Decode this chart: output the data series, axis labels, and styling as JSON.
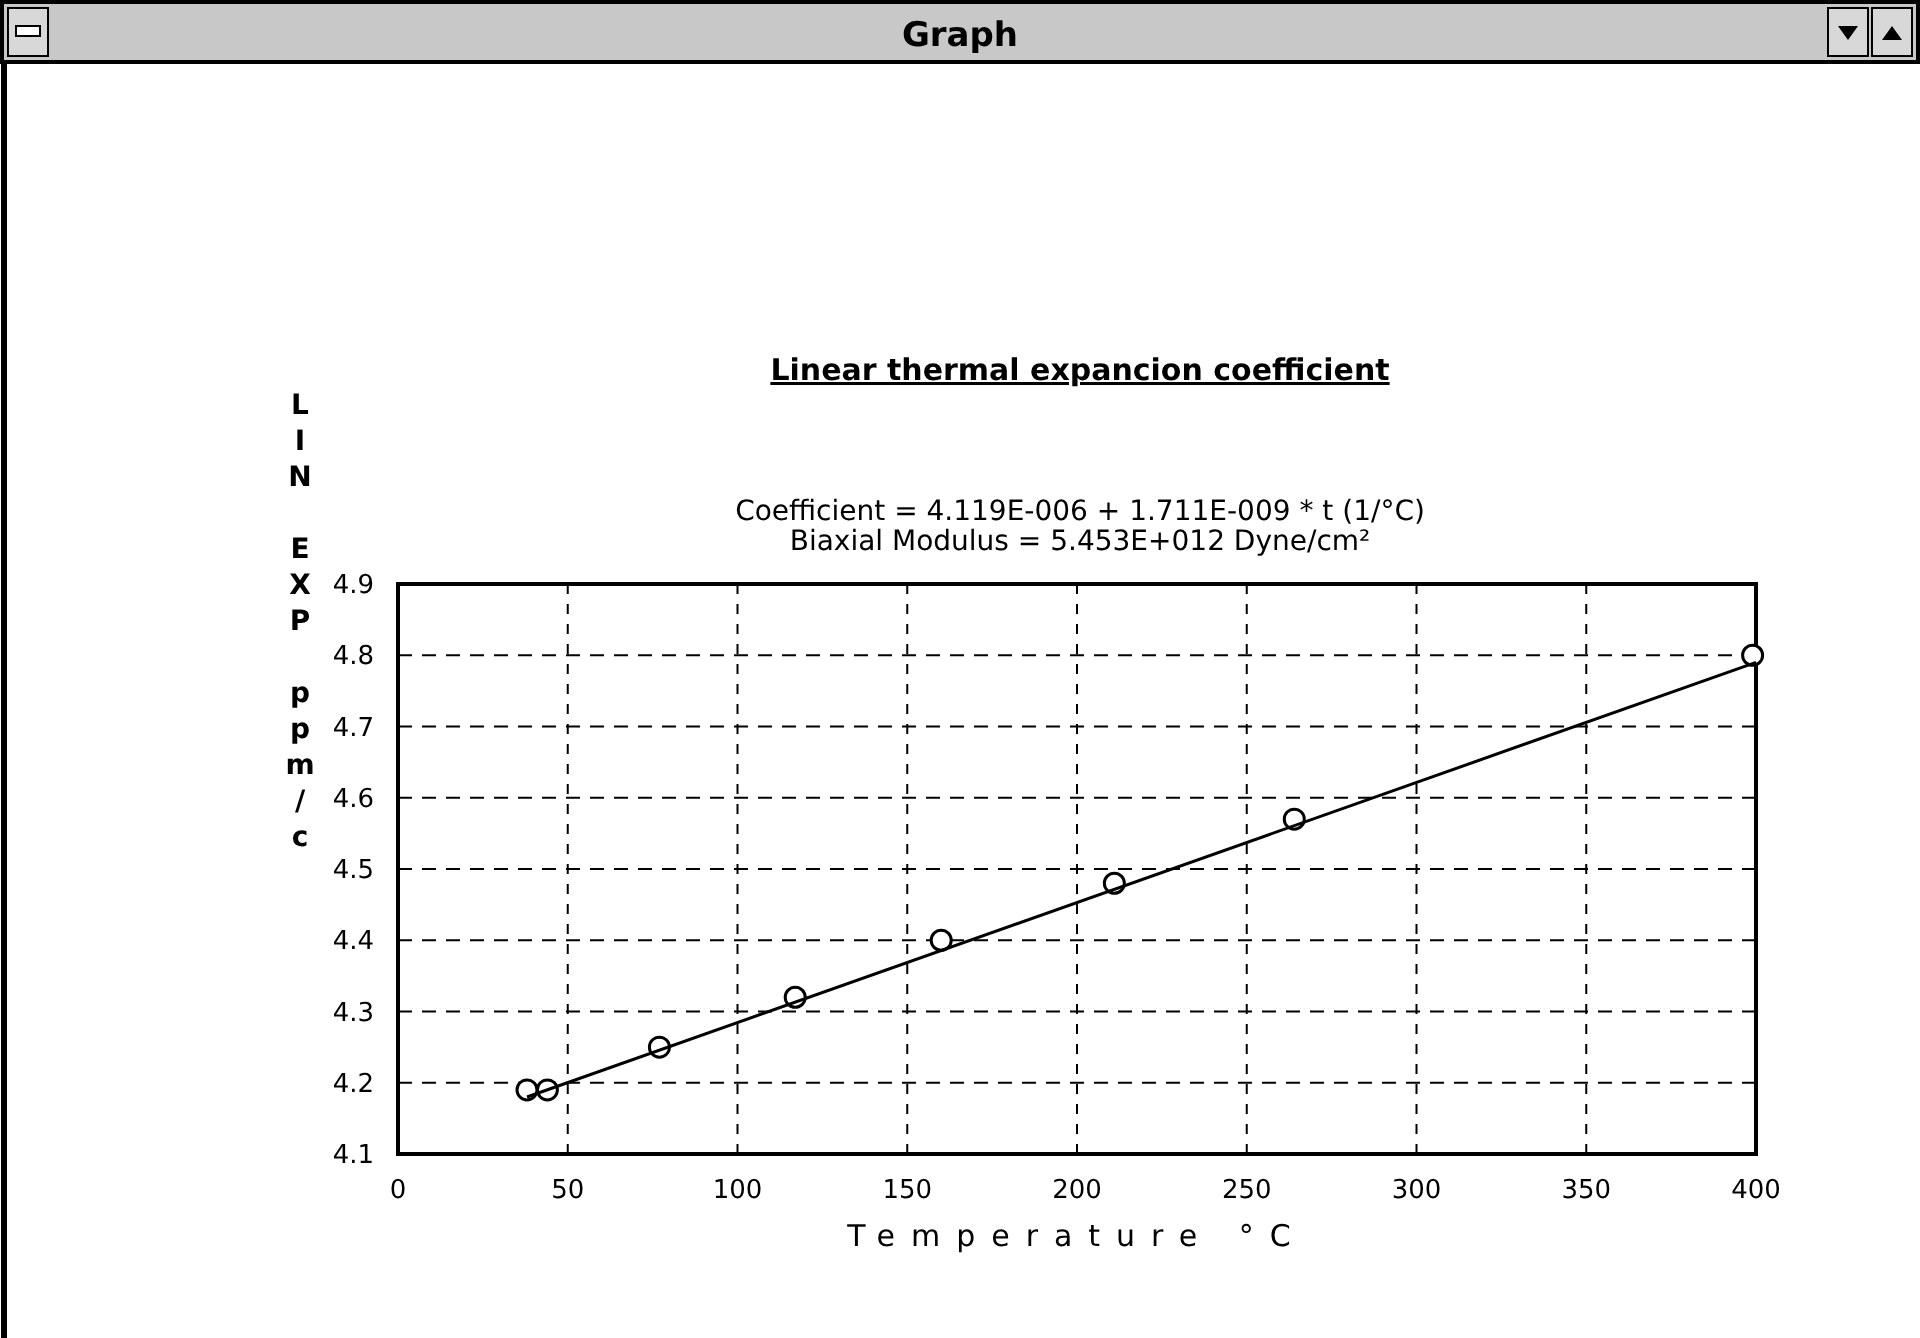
{
  "chart_data": {
    "type": "scatter",
    "title": "Linear thermal expancion coefficient",
    "subtitle": "Coefficient = 4.119E-006 + 1.711E-009 * t (1/°C)\nBiaxial Modulus = 5.453E+012 Dyne/cm²",
    "xlabel": "Temperature °C",
    "ylabel": "LIN EXP ppm/c",
    "annotations": [
      "Graph"
    ],
    "xlim": [
      0,
      400
    ],
    "xticks": [
      0,
      50,
      100,
      150,
      200,
      250,
      300,
      350,
      400
    ],
    "ylim": [
      4.1,
      4.9
    ],
    "yticks": [
      4.1,
      4.2,
      4.3,
      4.4,
      4.5,
      4.6,
      4.7,
      4.8,
      4.9
    ],
    "grid": true,
    "marker": "circle",
    "series": [
      {
        "color": "#000000",
        "x": [
          38,
          44,
          77,
          117,
          160,
          211,
          264,
          399
        ],
        "values": [
          4.19,
          4.19,
          4.25,
          4.32,
          4.4,
          4.48,
          4.57,
          4.8
        ]
      },
      {
        "type": "line",
        "color": "#000000",
        "marker": "none",
        "x": [
          38,
          400
        ],
        "values": [
          4.18,
          4.79
        ]
      }
    ]
  }
}
